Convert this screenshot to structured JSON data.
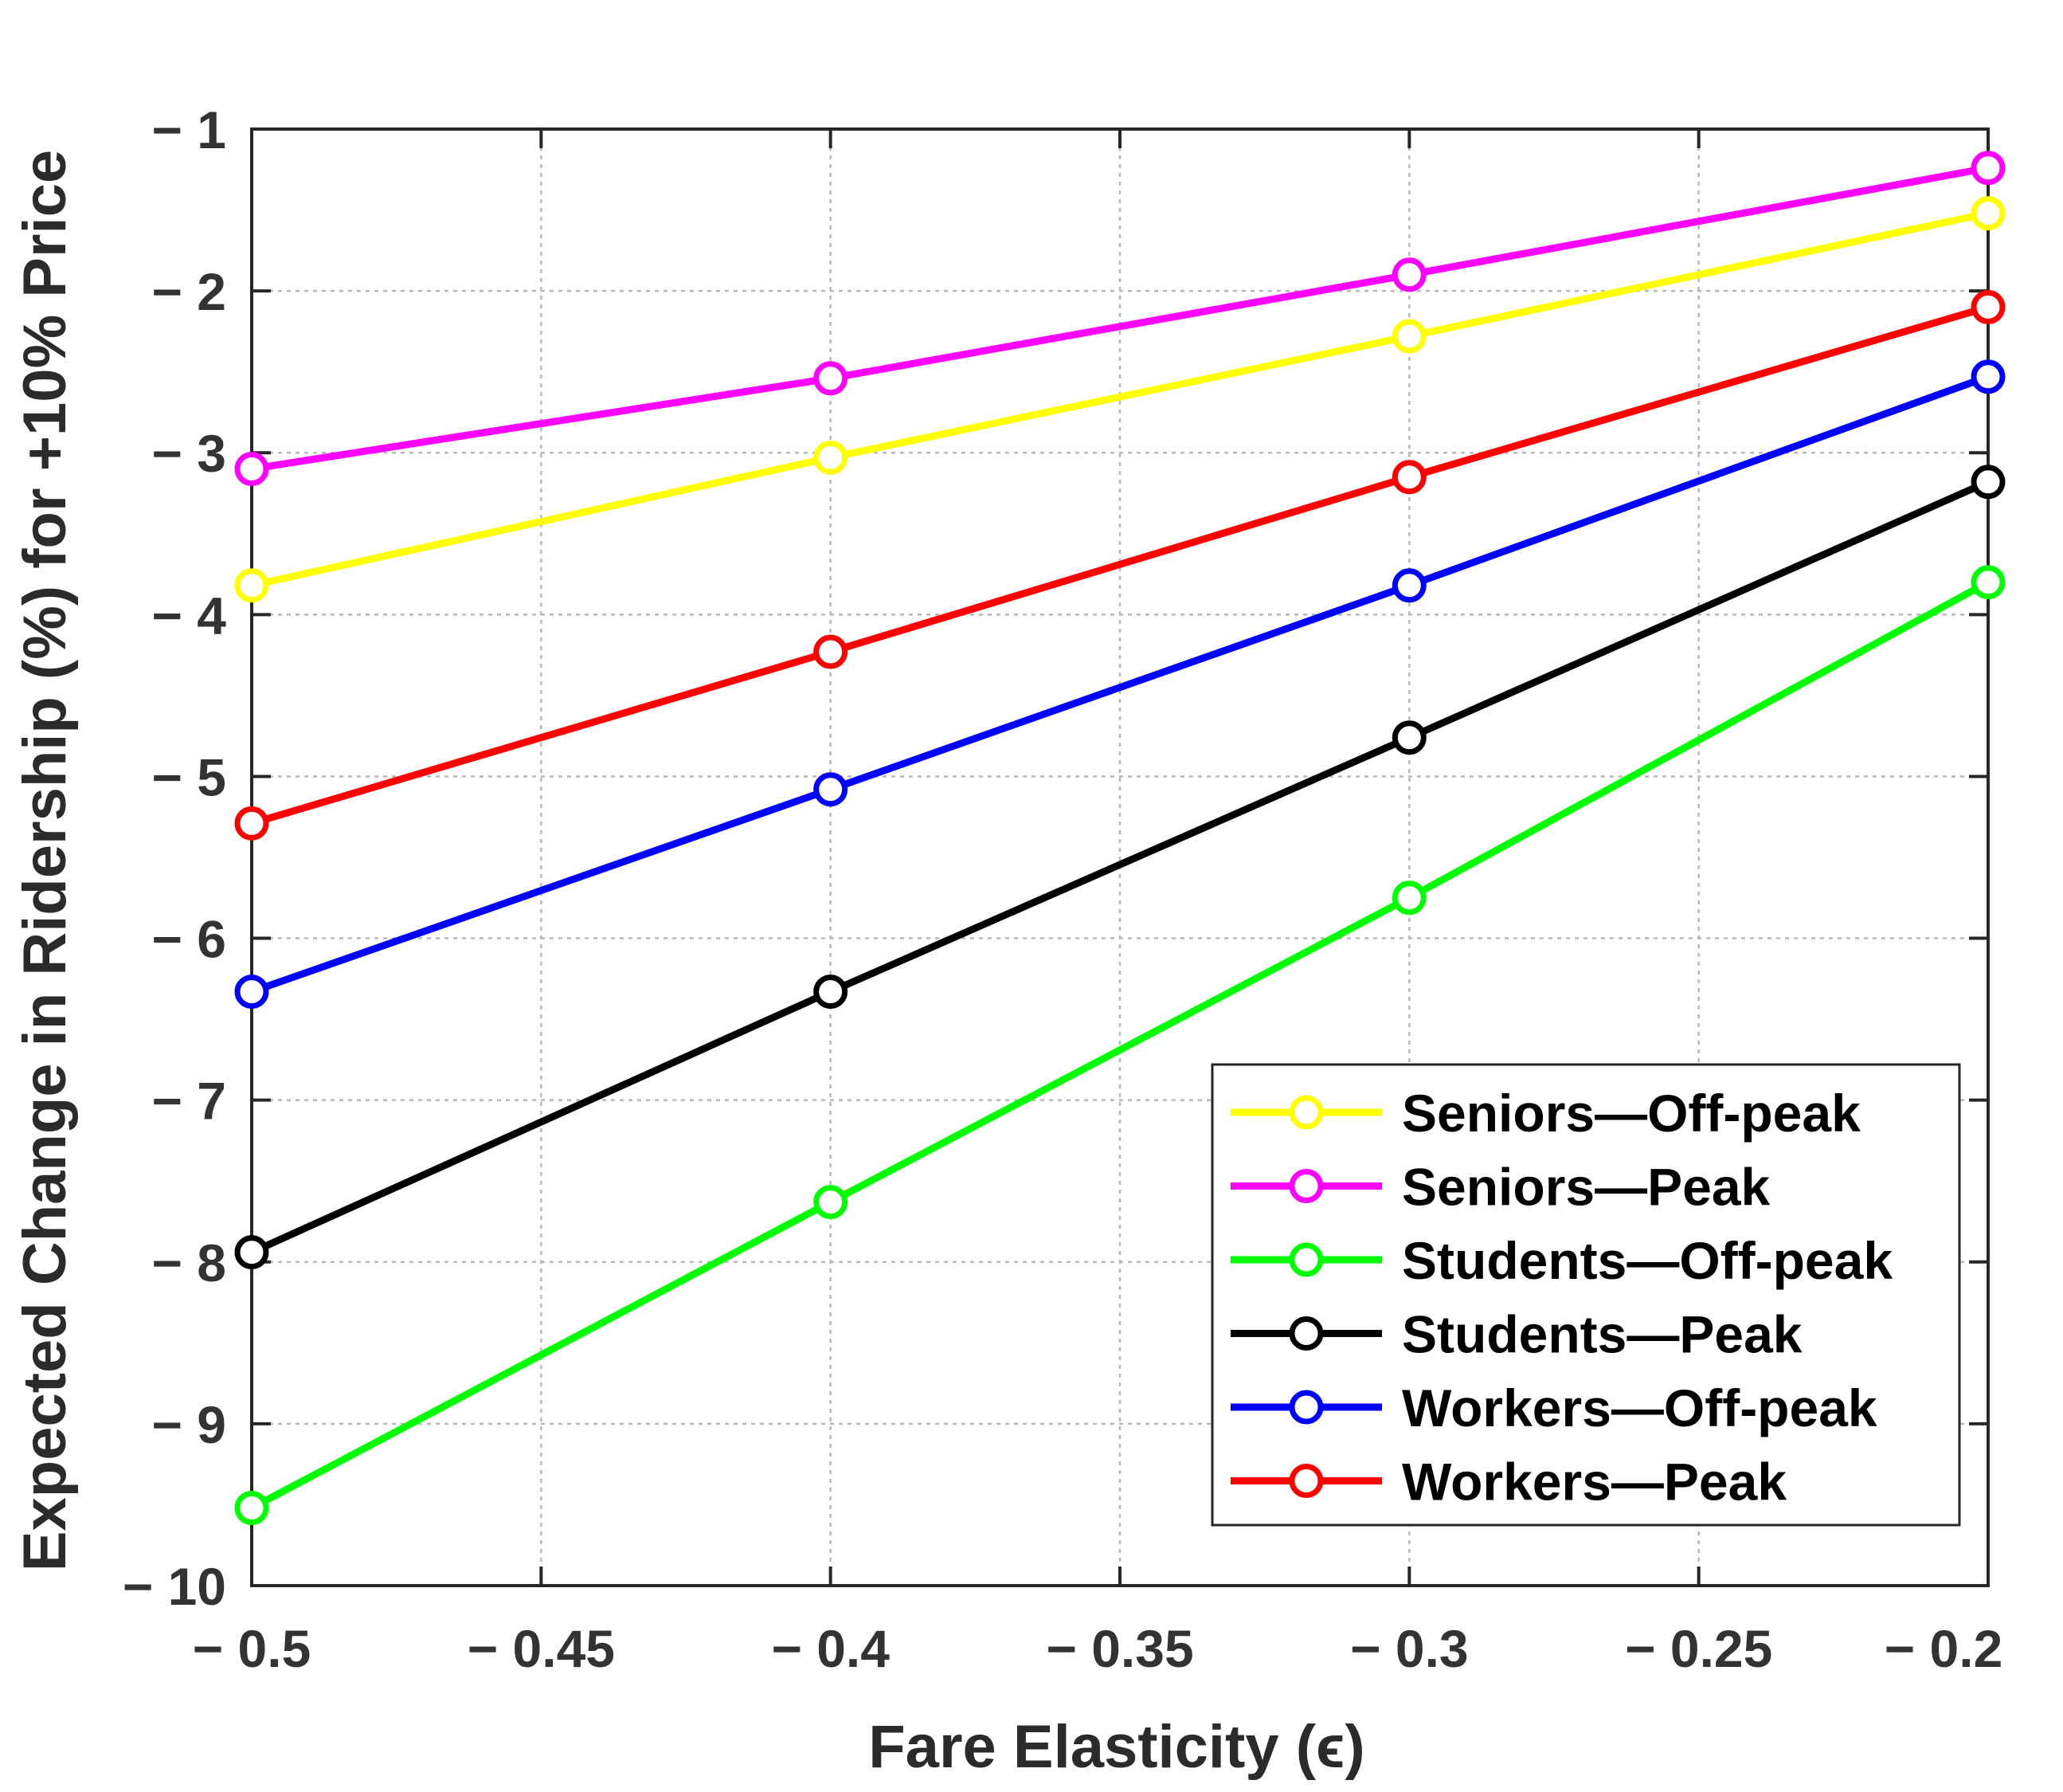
{
  "chart_data": {
    "type": "line",
    "xlabel": "Fare Elasticity (ϵ)",
    "ylabel": "Expected Change in Ridership (%) for +10% Price",
    "x": [
      -0.5,
      -0.4,
      -0.3,
      -0.2
    ],
    "xlim": [
      -0.5,
      -0.2
    ],
    "ylim": [
      -10,
      -1
    ],
    "xticks": [
      -0.5,
      -0.45,
      -0.4,
      -0.35,
      -0.3,
      -0.25,
      -0.2
    ],
    "xtick_labels": [
      "− 0.5",
      "− 0.45",
      "− 0.4",
      "− 0.35",
      "− 0.3",
      "− 0.25",
      "− 0.2"
    ],
    "yticks": [
      -1,
      -2,
      -3,
      -4,
      -5,
      -6,
      -7,
      -8,
      -9,
      -10
    ],
    "ytick_labels": [
      "− 1",
      "− 2",
      "− 3",
      "− 4",
      "− 5",
      "− 6",
      "− 7",
      "− 8",
      "− 9",
      "− 10"
    ],
    "grid": true,
    "legend_position": "bottom-right",
    "series": [
      {
        "name": "Seniors—Off-peak",
        "color": "#ffff00",
        "values": [
          -3.82,
          -3.03,
          -2.28,
          -1.52
        ]
      },
      {
        "name": "Seniors—Peak",
        "color": "#ff00ff",
        "values": [
          -3.1,
          -2.54,
          -1.9,
          -1.24
        ]
      },
      {
        "name": "Students—Off-peak",
        "color": "#00ff00",
        "values": [
          -9.52,
          -7.63,
          -5.75,
          -3.8
        ]
      },
      {
        "name": "Students—Peak",
        "color": "#000000",
        "values": [
          -7.94,
          -6.33,
          -4.76,
          -3.18
        ]
      },
      {
        "name": "Workers—Off-peak",
        "color": "#0000ff",
        "values": [
          -6.33,
          -5.08,
          -3.82,
          -2.53
        ]
      },
      {
        "name": "Workers—Peak",
        "color": "#ff0000",
        "values": [
          -5.29,
          -4.23,
          -3.15,
          -2.1
        ]
      }
    ]
  }
}
